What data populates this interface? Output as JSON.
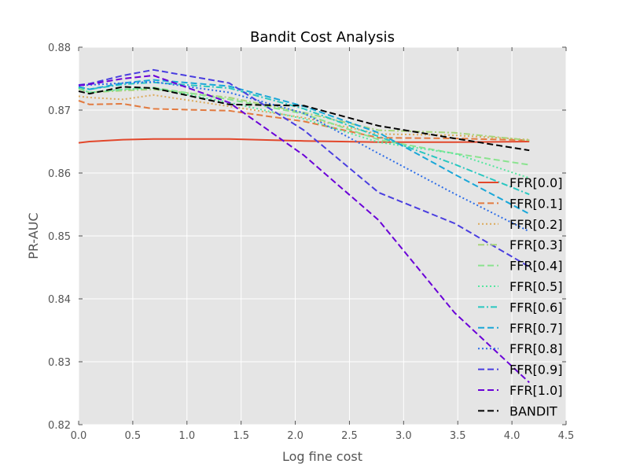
{
  "chart_data": {
    "type": "line",
    "title": "Bandit Cost Analysis",
    "xlabel": "Log fine cost",
    "ylabel": "PR-AUC",
    "xlim": [
      0,
      4.5
    ],
    "ylim": [
      0.82,
      0.88
    ],
    "x_ticks": [
      "0.0",
      "0.5",
      "1.0",
      "1.5",
      "2.0",
      "2.5",
      "3.0",
      "3.5",
      "4.0",
      "4.5"
    ],
    "y_ticks": [
      "0.82",
      "0.83",
      "0.84",
      "0.85",
      "0.86",
      "0.87",
      "0.88"
    ],
    "grid": true,
    "legend_position": "lower-right",
    "x": [
      0.0,
      0.1,
      0.41,
      0.69,
      1.39,
      2.08,
      2.77,
      3.47,
      4.16
    ],
    "series": [
      {
        "name": "FFR[0.0]",
        "color": "#e2472b",
        "dash": "solid",
        "values": [
          0.8648,
          0.865,
          0.8653,
          0.8654,
          0.8654,
          0.8651,
          0.8649,
          0.8649,
          0.865
        ]
      },
      {
        "name": "FFR[0.1]",
        "color": "#e27a3f",
        "dash": "dashed",
        "values": [
          0.8715,
          0.8709,
          0.871,
          0.8702,
          0.8699,
          0.8682,
          0.8656,
          0.8655,
          0.8652
        ]
      },
      {
        "name": "FFR[0.2]",
        "color": "#dcaa5b",
        "dash": "dotted",
        "values": [
          0.8722,
          0.872,
          0.8717,
          0.8724,
          0.8706,
          0.8688,
          0.8662,
          0.866,
          0.8653
        ]
      },
      {
        "name": "FFR[0.3]",
        "color": "#a8d47b",
        "dash": "dashdot",
        "values": [
          0.8734,
          0.8728,
          0.8731,
          0.8733,
          0.872,
          0.8696,
          0.8668,
          0.8664,
          0.8652
        ]
      },
      {
        "name": "FFR[0.4]",
        "color": "#8ae38f",
        "dash": "dashed",
        "values": [
          0.8736,
          0.8728,
          0.8733,
          0.8736,
          0.8717,
          0.8694,
          0.8653,
          0.8631,
          0.8613
        ]
      },
      {
        "name": "FFR[0.5]",
        "color": "#55e7a0",
        "dash": "dotted",
        "values": [
          0.8735,
          0.8728,
          0.8733,
          0.8735,
          0.8712,
          0.8686,
          0.8649,
          0.8631,
          0.8592
        ]
      },
      {
        "name": "FFR[0.6]",
        "color": "#29c7c0",
        "dash": "dashdot",
        "values": [
          0.8737,
          0.8733,
          0.8741,
          0.8744,
          0.8735,
          0.8702,
          0.8658,
          0.8614,
          0.8566
        ]
      },
      {
        "name": "FFR[0.7]",
        "color": "#1aa7d8",
        "dash": "dashed",
        "values": [
          0.8737,
          0.8733,
          0.8743,
          0.8748,
          0.8738,
          0.8706,
          0.8664,
          0.8598,
          0.8535
        ]
      },
      {
        "name": "FFR[0.8]",
        "color": "#2d6de8",
        "dash": "dotted",
        "values": [
          0.8739,
          0.874,
          0.8743,
          0.8745,
          0.8728,
          0.8695,
          0.8631,
          0.8567,
          0.8507
        ]
      },
      {
        "name": "FFR[0.9]",
        "color": "#4a3ee0",
        "dash": "dashed",
        "values": [
          0.874,
          0.8742,
          0.8755,
          0.8764,
          0.8743,
          0.8668,
          0.8569,
          0.852,
          0.8451
        ]
      },
      {
        "name": "FFR[1.0]",
        "color": "#6a00d8",
        "dash": "dashed",
        "values": [
          0.8739,
          0.8741,
          0.875,
          0.8755,
          0.8712,
          0.8628,
          0.8525,
          0.8378,
          0.8267
        ]
      },
      {
        "name": "BANDIT",
        "color": "#000000",
        "dash": "dashed",
        "values": [
          0.873,
          0.8726,
          0.8737,
          0.8735,
          0.8709,
          0.8707,
          0.8675,
          0.8655,
          0.8636
        ]
      }
    ]
  }
}
